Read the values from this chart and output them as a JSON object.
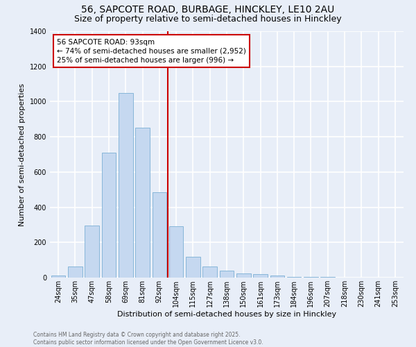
{
  "title_line1": "56, SAPCOTE ROAD, BURBAGE, HINCKLEY, LE10 2AU",
  "title_line2": "Size of property relative to semi-detached houses in Hinckley",
  "xlabel": "Distribution of semi-detached houses by size in Hinckley",
  "ylabel": "Number of semi-detached properties",
  "categories": [
    "24sqm",
    "35sqm",
    "47sqm",
    "58sqm",
    "69sqm",
    "81sqm",
    "92sqm",
    "104sqm",
    "115sqm",
    "127sqm",
    "138sqm",
    "150sqm",
    "161sqm",
    "173sqm",
    "184sqm",
    "196sqm",
    "207sqm",
    "218sqm",
    "230sqm",
    "241sqm",
    "253sqm"
  ],
  "values": [
    10,
    65,
    295,
    710,
    1050,
    850,
    485,
    290,
    120,
    65,
    40,
    25,
    20,
    10,
    5,
    2,
    2,
    1,
    1,
    0,
    0
  ],
  "bar_color": "#c5d8f0",
  "bar_edge_color": "#7bafd4",
  "vline_index": 6,
  "vline_color": "#cc0000",
  "annotation_text": "56 SAPCOTE ROAD: 93sqm\n← 74% of semi-detached houses are smaller (2,952)\n25% of semi-detached houses are larger (996) →",
  "annotation_box_color": "#cc0000",
  "ylim": [
    0,
    1400
  ],
  "yticks": [
    0,
    200,
    400,
    600,
    800,
    1000,
    1200,
    1400
  ],
  "bg_color": "#e8eef8",
  "grid_color": "#ffffff",
  "footer_text": "Contains HM Land Registry data © Crown copyright and database right 2025.\nContains public sector information licensed under the Open Government Licence v3.0.",
  "title_fontsize": 10,
  "subtitle_fontsize": 9,
  "axis_label_fontsize": 8,
  "tick_fontsize": 7,
  "bar_width": 0.85
}
